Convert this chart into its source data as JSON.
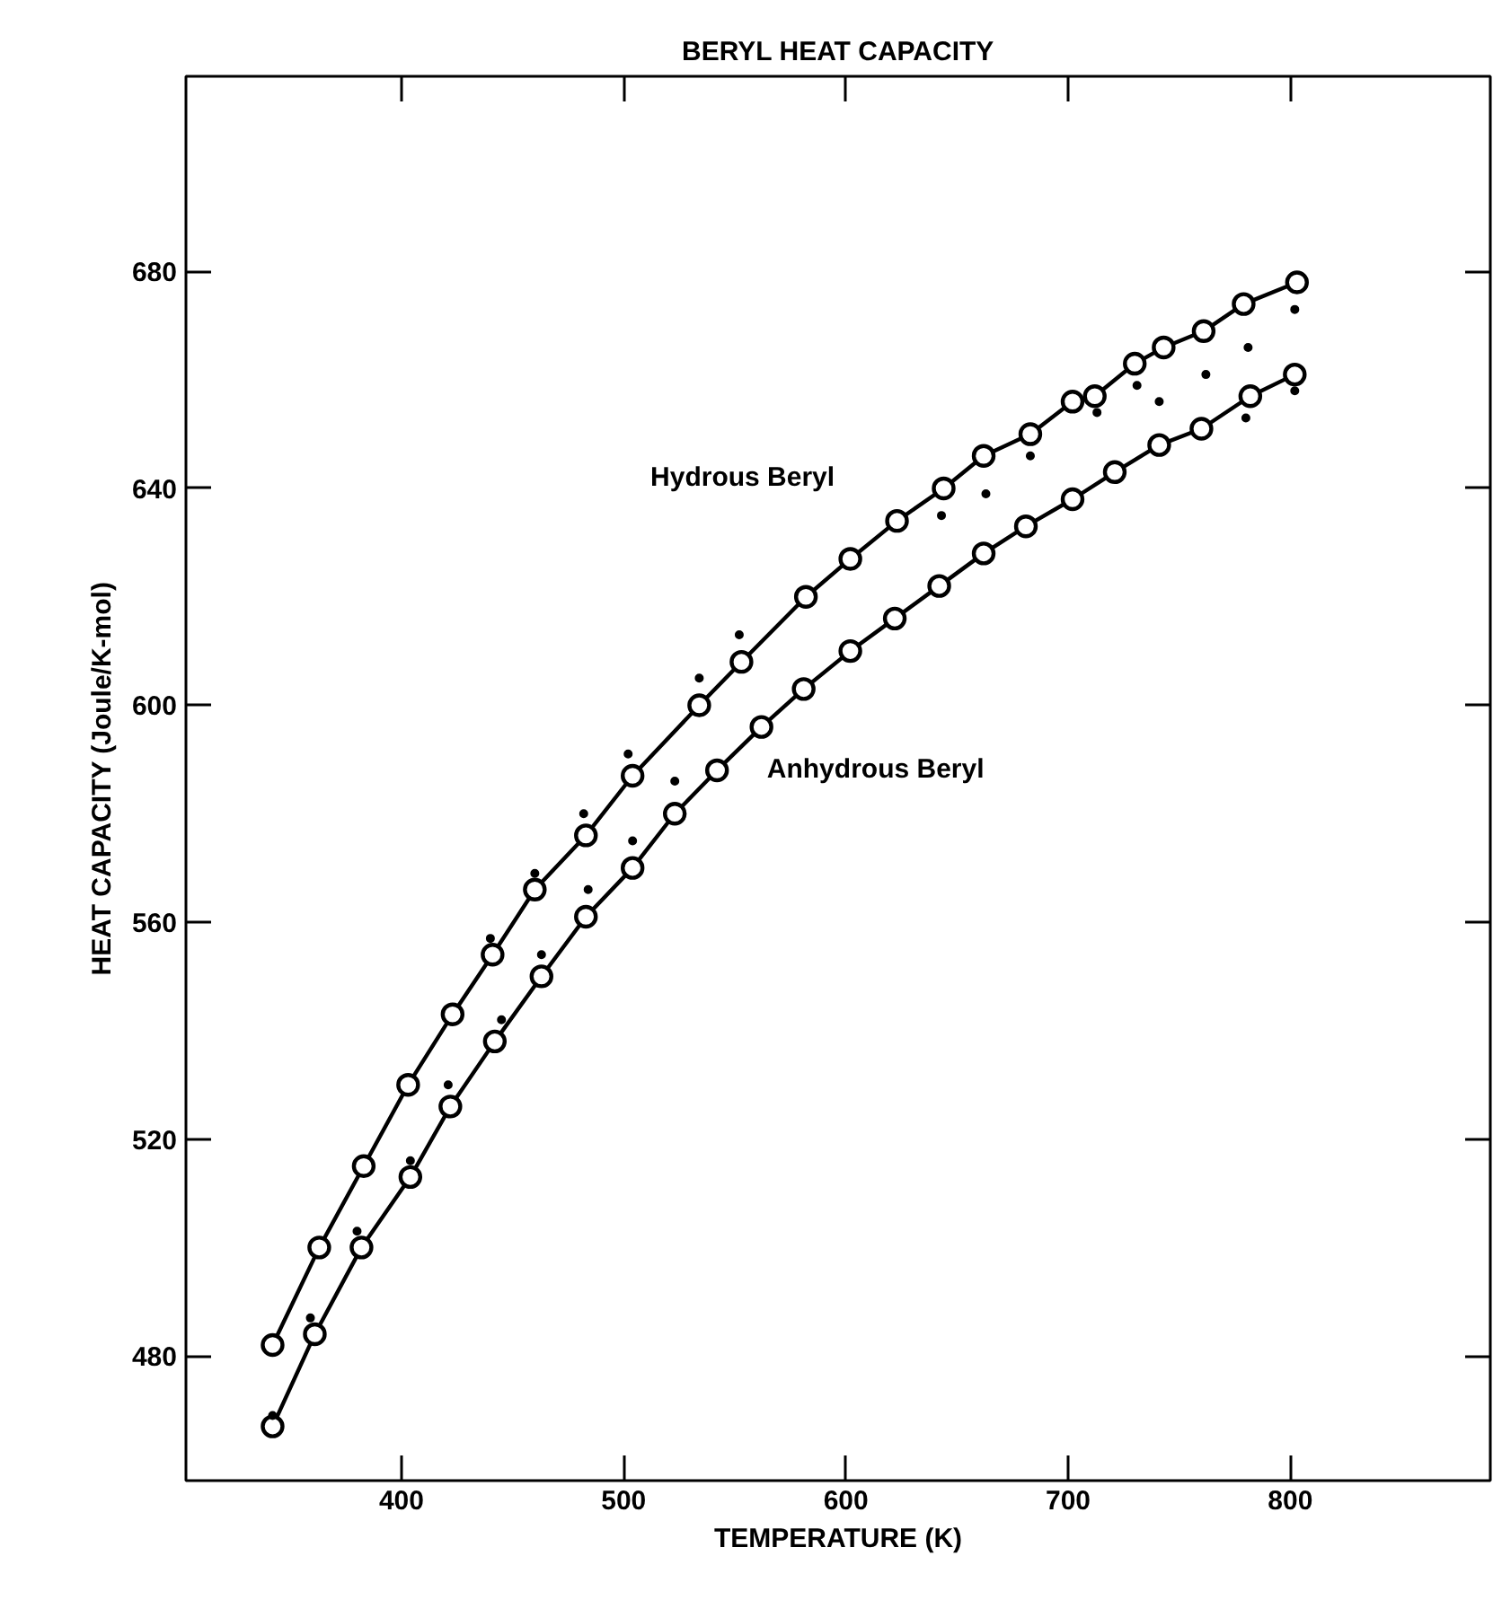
{
  "chart_data": {
    "type": "line",
    "title": "BERYL HEAT CAPACITY",
    "xlabel": "TEMPERATURE (K)",
    "ylabel": "HEAT CAPACITY (Joule/K-mol)",
    "xlim": [
      303,
      890
    ],
    "ylim": [
      457,
      716
    ],
    "xticks": [
      400,
      500,
      600,
      700,
      800
    ],
    "yticks": [
      480,
      520,
      560,
      600,
      640,
      680
    ],
    "grid": false,
    "series": [
      {
        "name": "Hydrous Beryl",
        "color": "#000000",
        "marker": "circle",
        "x": [
          342,
          363,
          383,
          403,
          423,
          441,
          460,
          483,
          504,
          534,
          553,
          582,
          602,
          623,
          644,
          662,
          683,
          702,
          712,
          730,
          743,
          761,
          779,
          803
        ],
        "values": [
          482,
          500,
          515,
          530,
          543,
          554,
          566,
          576,
          587,
          600,
          608,
          620,
          627,
          634,
          640,
          646,
          650,
          656,
          657,
          663,
          666,
          669,
          674,
          678
        ]
      },
      {
        "name": "Anhydrous Beryl",
        "color": "#000000",
        "marker": "circle",
        "x": [
          342,
          361,
          382,
          404,
          422,
          442,
          463,
          483,
          504,
          523,
          542,
          562,
          581,
          602,
          622,
          642,
          662,
          681,
          702,
          721,
          741,
          760,
          782,
          802
        ],
        "values": [
          467,
          484,
          500,
          513,
          526,
          538,
          550,
          561,
          570,
          580,
          588,
          596,
          603,
          610,
          616,
          622,
          628,
          633,
          638,
          643,
          648,
          651,
          657,
          661
        ]
      },
      {
        "color": "#000000",
        "type": "scatter",
        "marker": "dot",
        "x": [
          342,
          359,
          380,
          404,
          421,
          440,
          445,
          460,
          463,
          482,
          484,
          502,
          504,
          523,
          534,
          552,
          643,
          663,
          683,
          713,
          731,
          741,
          762,
          781,
          802,
          780,
          802
        ],
        "values": [
          469,
          487,
          503,
          516,
          530,
          557,
          542,
          569,
          554,
          580,
          566,
          591,
          575,
          586,
          605,
          613,
          635,
          639,
          646,
          654,
          659,
          656,
          661,
          666,
          673,
          653,
          658
        ]
      }
    ]
  }
}
